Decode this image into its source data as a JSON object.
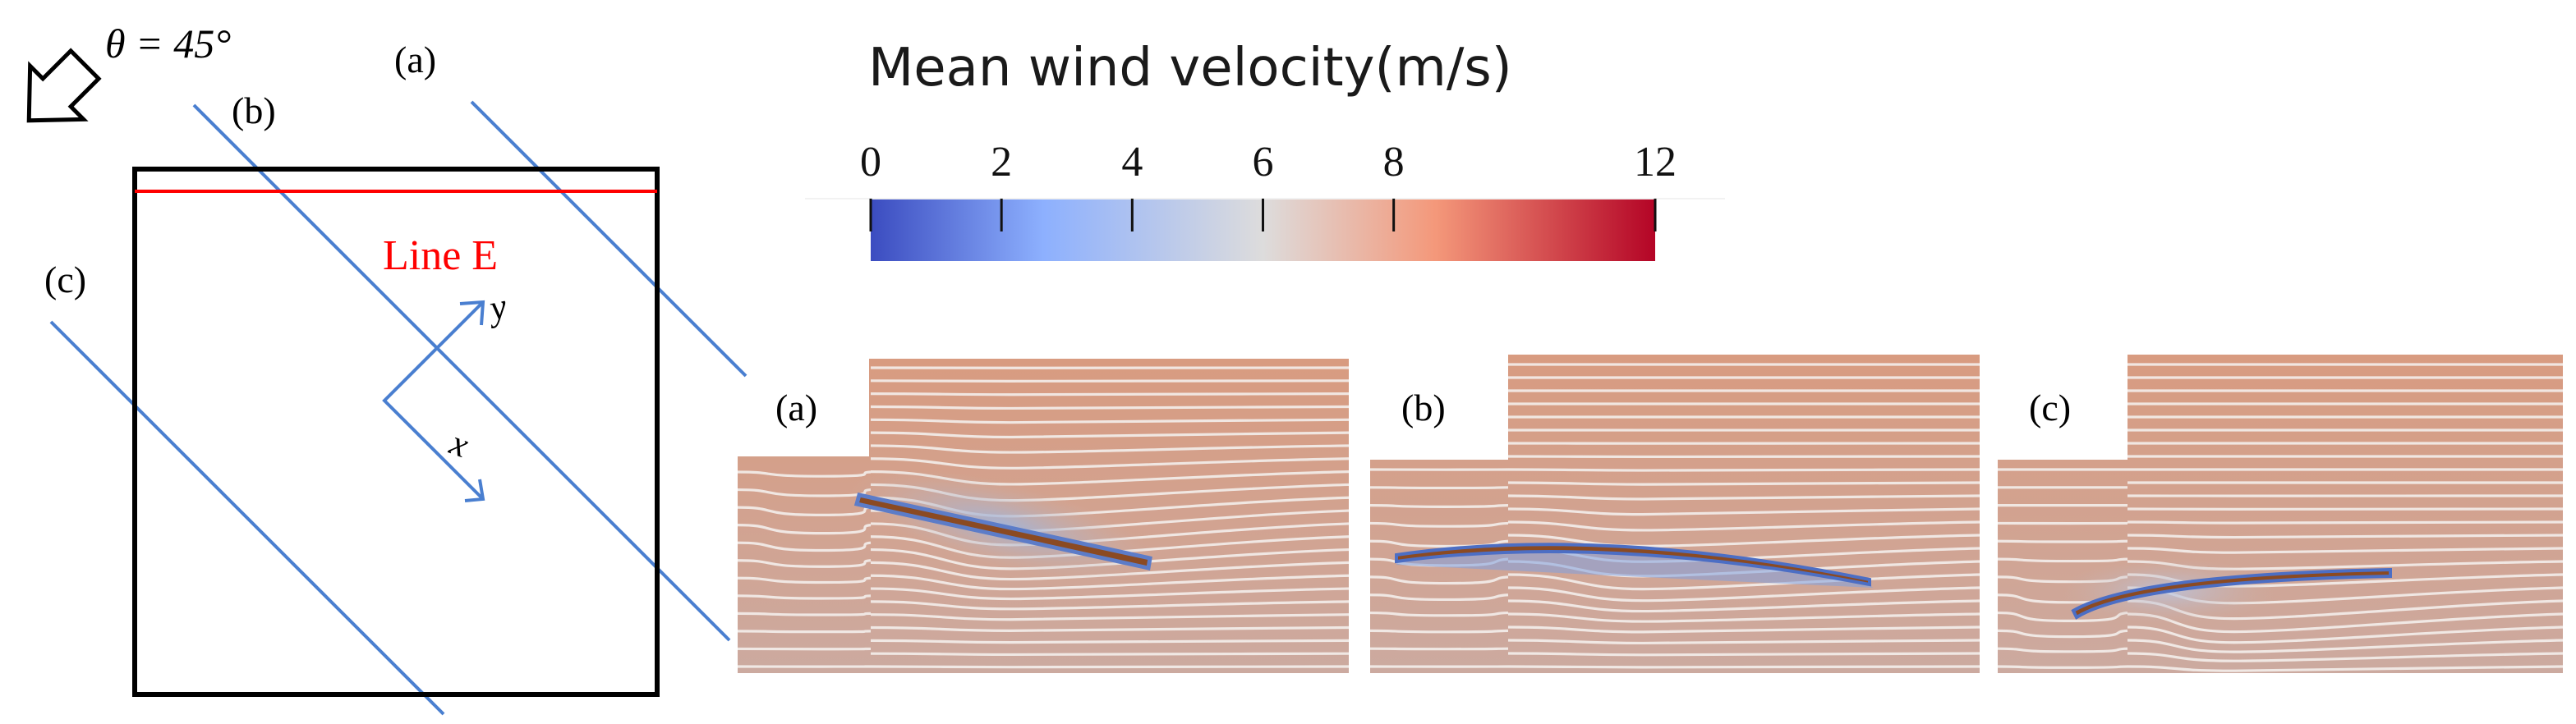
{
  "diagram": {
    "wind_angle_label": "θ = 45°",
    "wind_arrow_icon": "wind-direction-arrow",
    "line_labels": {
      "a": "(a)",
      "b": "(b)",
      "c": "(c)"
    },
    "line_e_label": "Line E",
    "axis_y_label": "y",
    "axis_x_label": "x"
  },
  "colorbar": {
    "title": "Mean wind velocity(m/s)",
    "ticks": [
      "0",
      "2",
      "4",
      "6",
      "8",
      "12"
    ],
    "tick_values": [
      0,
      2,
      4,
      6,
      8,
      12
    ],
    "range": [
      0,
      12
    ],
    "colors": [
      "#3b4cc0",
      "#8db0fe",
      "#dddcdc",
      "#f4987a",
      "#b40426"
    ]
  },
  "panels": [
    {
      "label": "(a)"
    },
    {
      "label": "(b)"
    },
    {
      "label": "(c)"
    }
  ],
  "colors": {
    "line_e": "#ff0000",
    "cut_lines": "#4a7fd0",
    "domain_box": "#000000",
    "background_flow": "#d79e86",
    "streamline": "#f4efec",
    "plate": "#8b4a22"
  }
}
